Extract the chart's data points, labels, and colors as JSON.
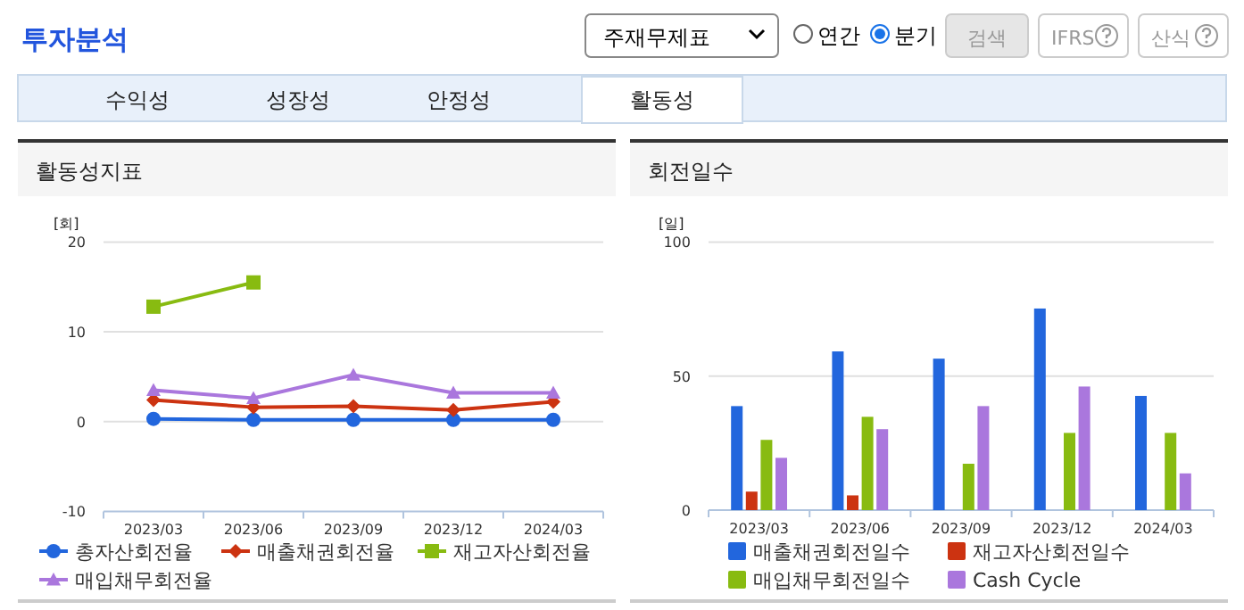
{
  "chart_data": [
    {
      "type": "other",
      "title": "투자분석",
      "annotations": [
        "주재무제표",
        "연간",
        "분기",
        "검색",
        "IFRS",
        "산식",
        "수익성",
        "성장성",
        "안정성",
        "활동성"
      ]
    },
    {
      "type": "line",
      "title": "활동성지표",
      "ylabel": "[회]",
      "categories": [
        "2023/03",
        "2023/06",
        "2023/09",
        "2023/12",
        "2024/03"
      ],
      "ylim": [
        -10,
        20
      ],
      "yticks": [
        -10,
        0,
        10,
        20
      ],
      "grid": "y",
      "legend": "bottom",
      "series": [
        {
          "name": "총자산회전율",
          "color": "#2266dd",
          "marker": "circle",
          "values": [
            0.3,
            0.2,
            0.2,
            0.2,
            0.2
          ]
        },
        {
          "name": "매출채권회전율",
          "color": "#cc3311",
          "marker": "diamond",
          "values": [
            2.4,
            1.6,
            1.7,
            1.3,
            2.2
          ]
        },
        {
          "name": "재고자산회전율",
          "color": "#88bb11",
          "marker": "square",
          "values": [
            12.8,
            15.5,
            null,
            null,
            null
          ]
        },
        {
          "name": "매입채무회전율",
          "color": "#aa77dd",
          "marker": "triangle",
          "values": [
            3.5,
            2.6,
            5.2,
            3.2,
            3.2
          ]
        }
      ]
    },
    {
      "type": "bar",
      "title": "회전일수",
      "ylabel": "[일]",
      "categories": [
        "2023/03",
        "2023/06",
        "2023/09",
        "2023/12",
        "2024/03"
      ],
      "ylim": [
        0,
        100
      ],
      "yticks": [
        0,
        50,
        100
      ],
      "grid": "y",
      "legend": "bottom",
      "series": [
        {
          "name": "매출채권회전일수",
          "color": "#2266dd",
          "values": [
            38.8,
            59.2,
            56.5,
            75.2,
            42.6
          ]
        },
        {
          "name": "재고자산회전일수",
          "color": "#cc3311",
          "values": [
            6.9,
            5.5,
            null,
            null,
            null
          ]
        },
        {
          "name": "매입채무회전일수",
          "color": "#88bb11",
          "values": [
            26.2,
            34.8,
            17.3,
            28.8,
            28.8
          ]
        },
        {
          "name": "Cash Cycle",
          "color": "#aa77dd",
          "values": [
            19.5,
            30.2,
            38.8,
            46.1,
            13.7
          ]
        }
      ]
    }
  ]
}
